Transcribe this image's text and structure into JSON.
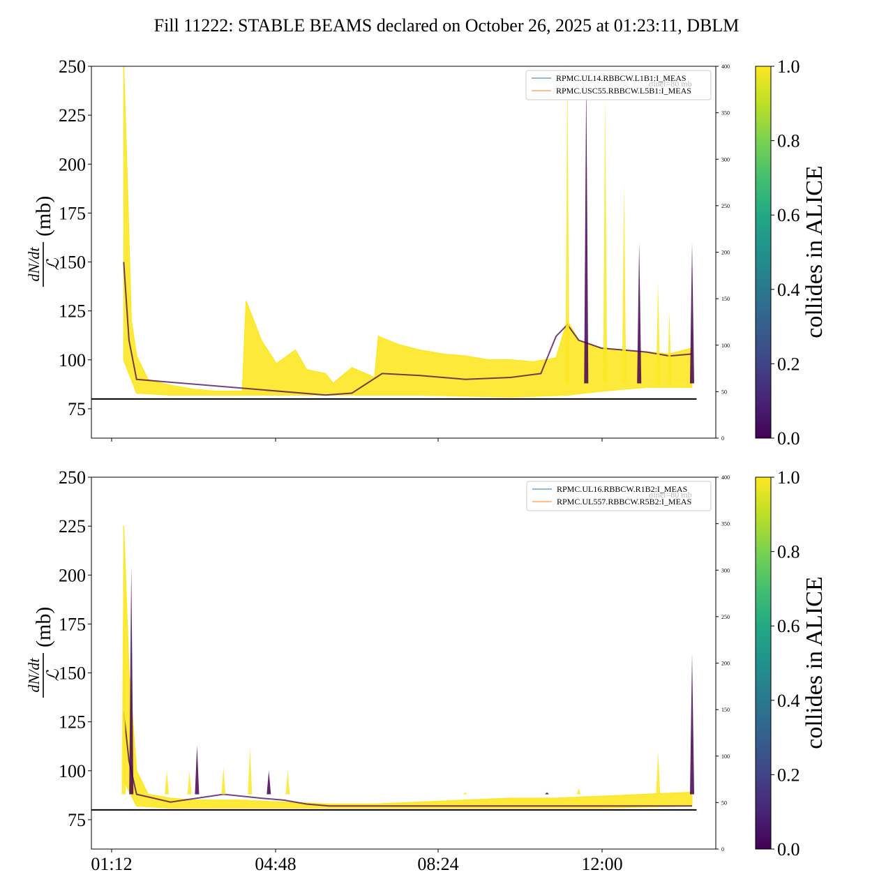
{
  "title": "Fill 11222: STABLE BEAMS declared on October 26, 2025 at 01:23:11, DBLM",
  "colors": {
    "viridis_dark": "#440154",
    "viridis_bright": "#fde725",
    "legend_line_1": "#1f77b4",
    "legend_line_2": "#ff7f0e",
    "ref_line": "#000000"
  },
  "chart_data": [
    {
      "type": "line",
      "panel": "top",
      "ylabel_fraction": {
        "numerator": "dN/dt",
        "denominator": "ℒ"
      },
      "ylabel_unit": "(mb)",
      "ylim": [
        60,
        250
      ],
      "yticks": [
        75,
        100,
        125,
        150,
        175,
        200,
        225,
        250
      ],
      "right_ylim": [
        0,
        400
      ],
      "right_yticks": [
        0,
        50,
        100,
        150,
        200,
        250,
        300,
        350,
        400
      ],
      "reference_line_y": 80,
      "legend": {
        "position": "top-right",
        "entries": [
          "RPMC.UL14.RBBCW.L1B1:I_MEAS",
          "RPMC.USC55.RBBCW.L5B1:I_MEAS"
        ],
        "ghost_text": "σinel=80 mb"
      },
      "colorbar": {
        "label": "collides in ALICE",
        "ticks": [
          "0.0",
          "0.2",
          "0.4",
          "0.6",
          "0.8",
          "1.0"
        ],
        "range": [
          0,
          1
        ]
      },
      "time_range": [
        "01:12",
        "14:06"
      ],
      "series": [
        {
          "name": "collides in ALICE = 1.0 (envelope max)",
          "x": [
            "01:28",
            "01:32",
            "01:38",
            "01:45",
            "02:00",
            "02:30",
            "03:00",
            "03:30",
            "04:05",
            "04:10",
            "04:30",
            "04:50",
            "05:15",
            "05:30",
            "05:55",
            "06:05",
            "06:30",
            "07:00",
            "07:05",
            "07:30",
            "08:00",
            "08:30",
            "09:00",
            "09:30",
            "10:00",
            "10:30",
            "11:00",
            "11:15",
            "11:30",
            "11:45",
            "12:00",
            "12:30",
            "13:00",
            "13:30",
            "14:00"
          ],
          "y": [
            250,
            200,
            120,
            102,
            90,
            87,
            85,
            84,
            84,
            130,
            110,
            98,
            105,
            95,
            93,
            88,
            96,
            91,
            112,
            108,
            105,
            103,
            102,
            100,
            100,
            99,
            101,
            120,
            110,
            108,
            106,
            105,
            104,
            103,
            106
          ]
        },
        {
          "name": "collides in ALICE = 1.0 (envelope min)",
          "x": [
            "01:28",
            "01:45",
            "02:30",
            "04:05",
            "06:00",
            "08:00",
            "10:00",
            "11:15",
            "12:00",
            "13:00",
            "14:00"
          ],
          "y": [
            100,
            83,
            82,
            82,
            82,
            82,
            81,
            82,
            84,
            86,
            86
          ]
        },
        {
          "name": "collides in ALICE = 0.0",
          "x": [
            "01:28",
            "01:35",
            "01:45",
            "05:55",
            "06:30",
            "07:10",
            "08:00",
            "09:00",
            "10:00",
            "10:40",
            "11:00",
            "11:15",
            "11:30",
            "12:00",
            "12:30",
            "13:00",
            "13:30",
            "14:00"
          ],
          "y": [
            150,
            110,
            90,
            82,
            83,
            93,
            92,
            90,
            91,
            93,
            112,
            118,
            110,
            106,
            105,
            104,
            102,
            103
          ]
        }
      ],
      "spikes": [
        {
          "x": "11:15",
          "y": 250
        },
        {
          "x": "11:40",
          "y": 245
        },
        {
          "x": "12:05",
          "y": 235
        },
        {
          "x": "12:30",
          "y": 190
        },
        {
          "x": "12:50",
          "y": 160
        },
        {
          "x": "13:15",
          "y": 140
        },
        {
          "x": "13:30",
          "y": 125
        },
        {
          "x": "14:00",
          "y": 160
        }
      ]
    },
    {
      "type": "line",
      "panel": "bottom",
      "ylabel_fraction": {
        "numerator": "dN/dt",
        "denominator": "ℒ"
      },
      "ylabel_unit": "(mb)",
      "ylim": [
        60,
        250
      ],
      "yticks": [
        75,
        100,
        125,
        150,
        175,
        200,
        225,
        250
      ],
      "right_ylim": [
        0,
        400
      ],
      "right_yticks": [
        0,
        50,
        100,
        150,
        200,
        250,
        300,
        350,
        400
      ],
      "reference_line_y": 80,
      "xticks": [
        "01:12",
        "04:48",
        "08:24",
        "12:00"
      ],
      "legend": {
        "position": "top-right",
        "entries": [
          "RPMC.UL16.RBBCW.R1B2:I_MEAS",
          "RPMC.UL557.RBBCW.R5B2:I_MEAS"
        ],
        "ghost_text": "σinel=80 mb"
      },
      "colorbar": {
        "label": "collides in ALICE",
        "ticks": [
          "0.0",
          "0.2",
          "0.4",
          "0.6",
          "0.8",
          "1.0"
        ],
        "range": [
          0,
          1
        ]
      },
      "time_range": [
        "01:12",
        "14:06"
      ],
      "series": [
        {
          "name": "collides in ALICE = 1.0 (envelope max)",
          "x": [
            "01:28",
            "01:35",
            "01:45",
            "02:00",
            "02:30",
            "03:00",
            "04:00",
            "05:00",
            "06:00",
            "07:00",
            "08:00",
            "09:00",
            "10:00",
            "11:00",
            "12:00",
            "13:00",
            "14:00"
          ],
          "y": [
            225,
            150,
            100,
            88,
            86,
            85,
            85,
            84,
            83,
            83,
            84,
            85,
            86,
            86,
            87,
            88,
            89
          ]
        },
        {
          "name": "collides in ALICE = 1.0 (envelope min)",
          "x": [
            "01:28",
            "01:45",
            "02:30",
            "04:00",
            "06:00",
            "08:00",
            "10:00",
            "12:00",
            "14:00"
          ],
          "y": [
            95,
            82,
            81,
            81,
            81,
            81,
            81,
            81,
            82
          ]
        },
        {
          "name": "collides in ALICE = 0.0",
          "x": [
            "01:28",
            "01:35",
            "01:45",
            "02:30",
            "03:40",
            "04:30",
            "05:00",
            "05:30",
            "06:00",
            "13:00",
            "14:00"
          ],
          "y": [
            130,
            105,
            88,
            84,
            88,
            86,
            85,
            83,
            82,
            82,
            82
          ]
        }
      ],
      "spikes": [
        {
          "x": "01:28",
          "y": 225
        },
        {
          "x": "01:38",
          "y": 205
        },
        {
          "x": "02:25",
          "y": 100
        },
        {
          "x": "02:55",
          "y": 100
        },
        {
          "x": "03:05",
          "y": 113
        },
        {
          "x": "03:40",
          "y": 102
        },
        {
          "x": "04:15",
          "y": 112
        },
        {
          "x": "04:40",
          "y": 100
        },
        {
          "x": "05:05",
          "y": 100
        },
        {
          "x": "09:00",
          "y": 89
        },
        {
          "x": "10:48",
          "y": 89
        },
        {
          "x": "11:30",
          "y": 91
        },
        {
          "x": "13:15",
          "y": 110
        },
        {
          "x": "14:00",
          "y": 160
        }
      ]
    }
  ]
}
